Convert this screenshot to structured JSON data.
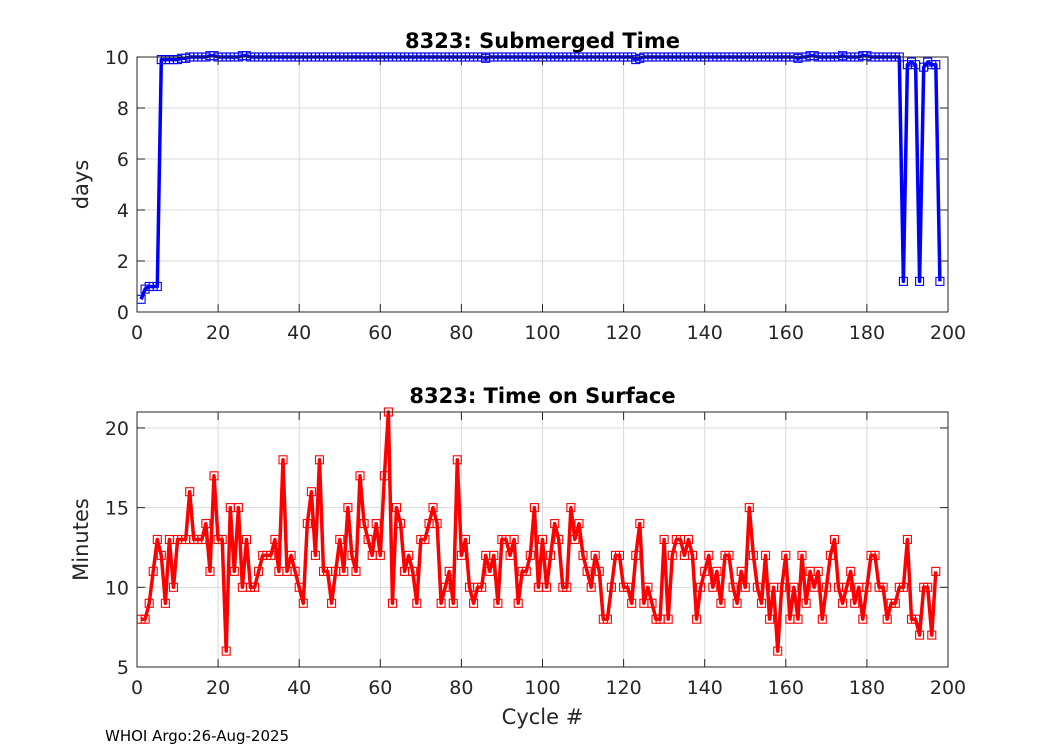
{
  "footer": "WHOI Argo:26-Aug-2025",
  "chart_data": [
    {
      "type": "line",
      "title": "8323: Submerged Time",
      "xlabel": "",
      "ylabel": "days",
      "xlim": [
        0,
        200
      ],
      "ylim": [
        0,
        10
      ],
      "xticks": [
        0,
        20,
        40,
        60,
        80,
        100,
        120,
        140,
        160,
        180,
        200
      ],
      "yticks": [
        0,
        2,
        4,
        6,
        8,
        10
      ],
      "grid": true,
      "marker": "square",
      "color": "#0000ff",
      "series": [
        {
          "x_start": 1,
          "values": [
            0.5,
            0.9,
            1.0,
            1.0,
            1.0,
            9.9,
            9.9,
            9.9,
            9.9,
            9.9,
            9.95,
            9.95,
            10.0,
            10.0,
            10.0,
            10.0,
            10.0,
            10.05,
            10.05,
            10.0,
            10.0,
            10.0,
            10.0,
            10.0,
            10.0,
            10.05,
            10.05,
            10.0,
            10.0,
            10.0,
            10.0,
            10.0,
            10.0,
            10.0,
            10.0,
            10.0,
            10.0,
            10.0,
            10.0,
            10.0,
            10.0,
            10.0,
            10.0,
            10.0,
            10.0,
            10.0,
            10.0,
            10.0,
            10.0,
            10.0,
            10.0,
            10.0,
            10.0,
            10.0,
            10.0,
            10.0,
            10.0,
            10.0,
            10.0,
            10.0,
            10.0,
            10.0,
            10.0,
            10.0,
            10.0,
            10.0,
            10.0,
            10.0,
            10.0,
            10.0,
            10.0,
            10.0,
            10.0,
            10.0,
            10.0,
            10.0,
            10.0,
            10.0,
            10.0,
            10.0,
            10.0,
            10.0,
            10.0,
            10.0,
            10.0,
            9.95,
            10.0,
            10.0,
            10.0,
            10.0,
            10.0,
            10.0,
            10.0,
            10.0,
            10.0,
            10.0,
            10.0,
            10.0,
            10.0,
            10.0,
            10.0,
            10.0,
            10.0,
            10.0,
            10.0,
            10.0,
            10.0,
            10.0,
            10.0,
            10.0,
            10.0,
            10.0,
            10.0,
            10.0,
            10.0,
            10.0,
            10.0,
            10.0,
            10.0,
            10.0,
            10.0,
            10.0,
            9.9,
            9.95,
            10.0,
            10.0,
            10.0,
            10.0,
            10.0,
            10.0,
            10.0,
            10.0,
            10.0,
            10.0,
            10.0,
            10.0,
            10.0,
            10.0,
            10.0,
            10.0,
            10.0,
            10.0,
            10.0,
            10.0,
            10.0,
            10.0,
            10.0,
            10.0,
            10.0,
            10.0,
            10.0,
            10.0,
            10.0,
            10.0,
            10.0,
            10.0,
            10.0,
            10.0,
            10.0,
            10.0,
            10.0,
            10.0,
            9.95,
            10.0,
            10.0,
            10.05,
            10.05,
            10.0,
            10.0,
            10.0,
            10.0,
            10.0,
            10.0,
            10.05,
            10.0,
            10.0,
            10.0,
            10.0,
            10.05,
            10.05,
            10.0,
            10.0,
            10.0,
            10.0,
            10.0,
            10.0,
            10.0,
            10.0,
            1.2,
            9.7,
            9.8,
            9.7,
            1.2,
            9.6,
            9.8,
            9.7,
            9.7,
            1.2
          ]
        }
      ]
    },
    {
      "type": "line",
      "title": "8323: Time on Surface",
      "xlabel": "Cycle #",
      "ylabel": "Minutes",
      "xlim": [
        0,
        200
      ],
      "ylim": [
        5,
        21
      ],
      "xticks": [
        0,
        20,
        40,
        60,
        80,
        100,
        120,
        140,
        160,
        180,
        200
      ],
      "yticks": [
        5,
        10,
        15,
        20
      ],
      "grid": true,
      "marker": "square",
      "color": "#ff0000",
      "series": [
        {
          "x_start": 1,
          "values": [
            8,
            8,
            9,
            11,
            13,
            12,
            9,
            13,
            10,
            13,
            13,
            13,
            16,
            13,
            13,
            13,
            14,
            11,
            17,
            13,
            13,
            6,
            15,
            11,
            15,
            10,
            13,
            10,
            10,
            11,
            12,
            12,
            12,
            13,
            11,
            18,
            11,
            12,
            11,
            10,
            9,
            14,
            16,
            12,
            18,
            11,
            11,
            9,
            11,
            13,
            11,
            15,
            12,
            11,
            17,
            14,
            13,
            12,
            14,
            12,
            17,
            21,
            9,
            15,
            14,
            11,
            12,
            11,
            9,
            13,
            13,
            14,
            15,
            14,
            9,
            10,
            11,
            9,
            18,
            12,
            13,
            10,
            9,
            10,
            10,
            12,
            11,
            12,
            9,
            13,
            13,
            12,
            13,
            9,
            11,
            11,
            12,
            15,
            10,
            13,
            10,
            12,
            14,
            13,
            10,
            10,
            15,
            13,
            14,
            12,
            11,
            10,
            12,
            11,
            8,
            8,
            10,
            12,
            12,
            10,
            10,
            9,
            12,
            14,
            9,
            10,
            9,
            8,
            8,
            13,
            8,
            12,
            13,
            13,
            12,
            13,
            12,
            8,
            10,
            11,
            12,
            10,
            11,
            9,
            12,
            12,
            10,
            9,
            11,
            10,
            15,
            12,
            10,
            9,
            12,
            8,
            10,
            6,
            10,
            12,
            8,
            10,
            8,
            12,
            9,
            11,
            10,
            11,
            8,
            10,
            12,
            13,
            10,
            9,
            10,
            11,
            9,
            10,
            8,
            10,
            12,
            12,
            10,
            10,
            8,
            9,
            9,
            10,
            10,
            13,
            8,
            8,
            7,
            10,
            10,
            7,
            11
          ]
        }
      ]
    }
  ]
}
